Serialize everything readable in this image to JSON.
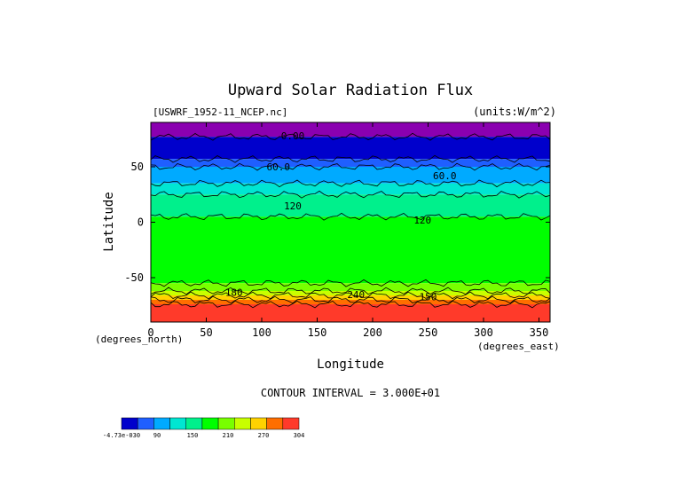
{
  "chart_data": {
    "type": "heatmap",
    "title": "Upward Solar Radiation Flux",
    "source_label": "[USWRF_1952-11_NCEP.nc]",
    "units_label": "(units:W/m^2)",
    "xlabel": "Longitude",
    "ylabel": "Latitude",
    "x_unit_label": "(degrees_east)",
    "y_unit_label": "(degrees_north)",
    "xlim": [
      0,
      360
    ],
    "ylim": [
      -90,
      90
    ],
    "x_ticks": [
      0,
      50,
      100,
      150,
      200,
      250,
      300,
      350
    ],
    "y_ticks": [
      50,
      0,
      -50
    ],
    "contour_interval_text": "CONTOUR INTERVAL = 3.000E+01",
    "contour_labels": [
      {
        "text": "0.00",
        "x": 128,
        "y": 78
      },
      {
        "text": "60.0",
        "x": 115,
        "y": 50
      },
      {
        "text": "60.0",
        "x": 265,
        "y": 42
      },
      {
        "text": "120",
        "x": 128,
        "y": 15
      },
      {
        "text": "120",
        "x": 245,
        "y": 2
      },
      {
        "text": "180",
        "x": 75,
        "y": -63
      },
      {
        "text": "240",
        "x": 185,
        "y": -65
      },
      {
        "text": "150",
        "x": 250,
        "y": -67
      }
    ],
    "colorbar": {
      "colors": [
        "#0000cc",
        "#1f5fff",
        "#00aaff",
        "#00e6d2",
        "#00f08c",
        "#00ff00",
        "#78ff00",
        "#c8ff00",
        "#ffd200",
        "#ff6e00",
        "#ff3a2a"
      ],
      "tick_labels": [
        "-4.73e-030",
        "90",
        "150",
        "210",
        "270",
        "304"
      ]
    },
    "latitude_bands": [
      {
        "lat": [
          77,
          90
        ],
        "color": "#8a00b0",
        "value": 0
      },
      {
        "lat": [
          57,
          77
        ],
        "color": "#0000cc",
        "value": 15
      },
      {
        "lat": [
          50,
          57
        ],
        "color": "#1f5fff",
        "value": 45
      },
      {
        "lat": [
          35,
          50
        ],
        "color": "#00aaff",
        "value": 60
      },
      {
        "lat": [
          25,
          35
        ],
        "color": "#00e6d2",
        "value": 90
      },
      {
        "lat": [
          5,
          25
        ],
        "color": "#00f08c",
        "value": 110
      },
      {
        "lat": [
          -55,
          5
        ],
        "color": "#00ff00",
        "value": 130
      },
      {
        "lat": [
          -62,
          -55
        ],
        "color": "#78ff00",
        "value": 170
      },
      {
        "lat": [
          -66,
          -62
        ],
        "color": "#c8ff00",
        "value": 190
      },
      {
        "lat": [
          -70,
          -66
        ],
        "color": "#ffd200",
        "value": 230
      },
      {
        "lat": [
          -74,
          -70
        ],
        "color": "#ff6e00",
        "value": 270
      },
      {
        "lat": [
          -90,
          -74
        ],
        "color": "#ff3a2a",
        "value": 300
      }
    ]
  }
}
